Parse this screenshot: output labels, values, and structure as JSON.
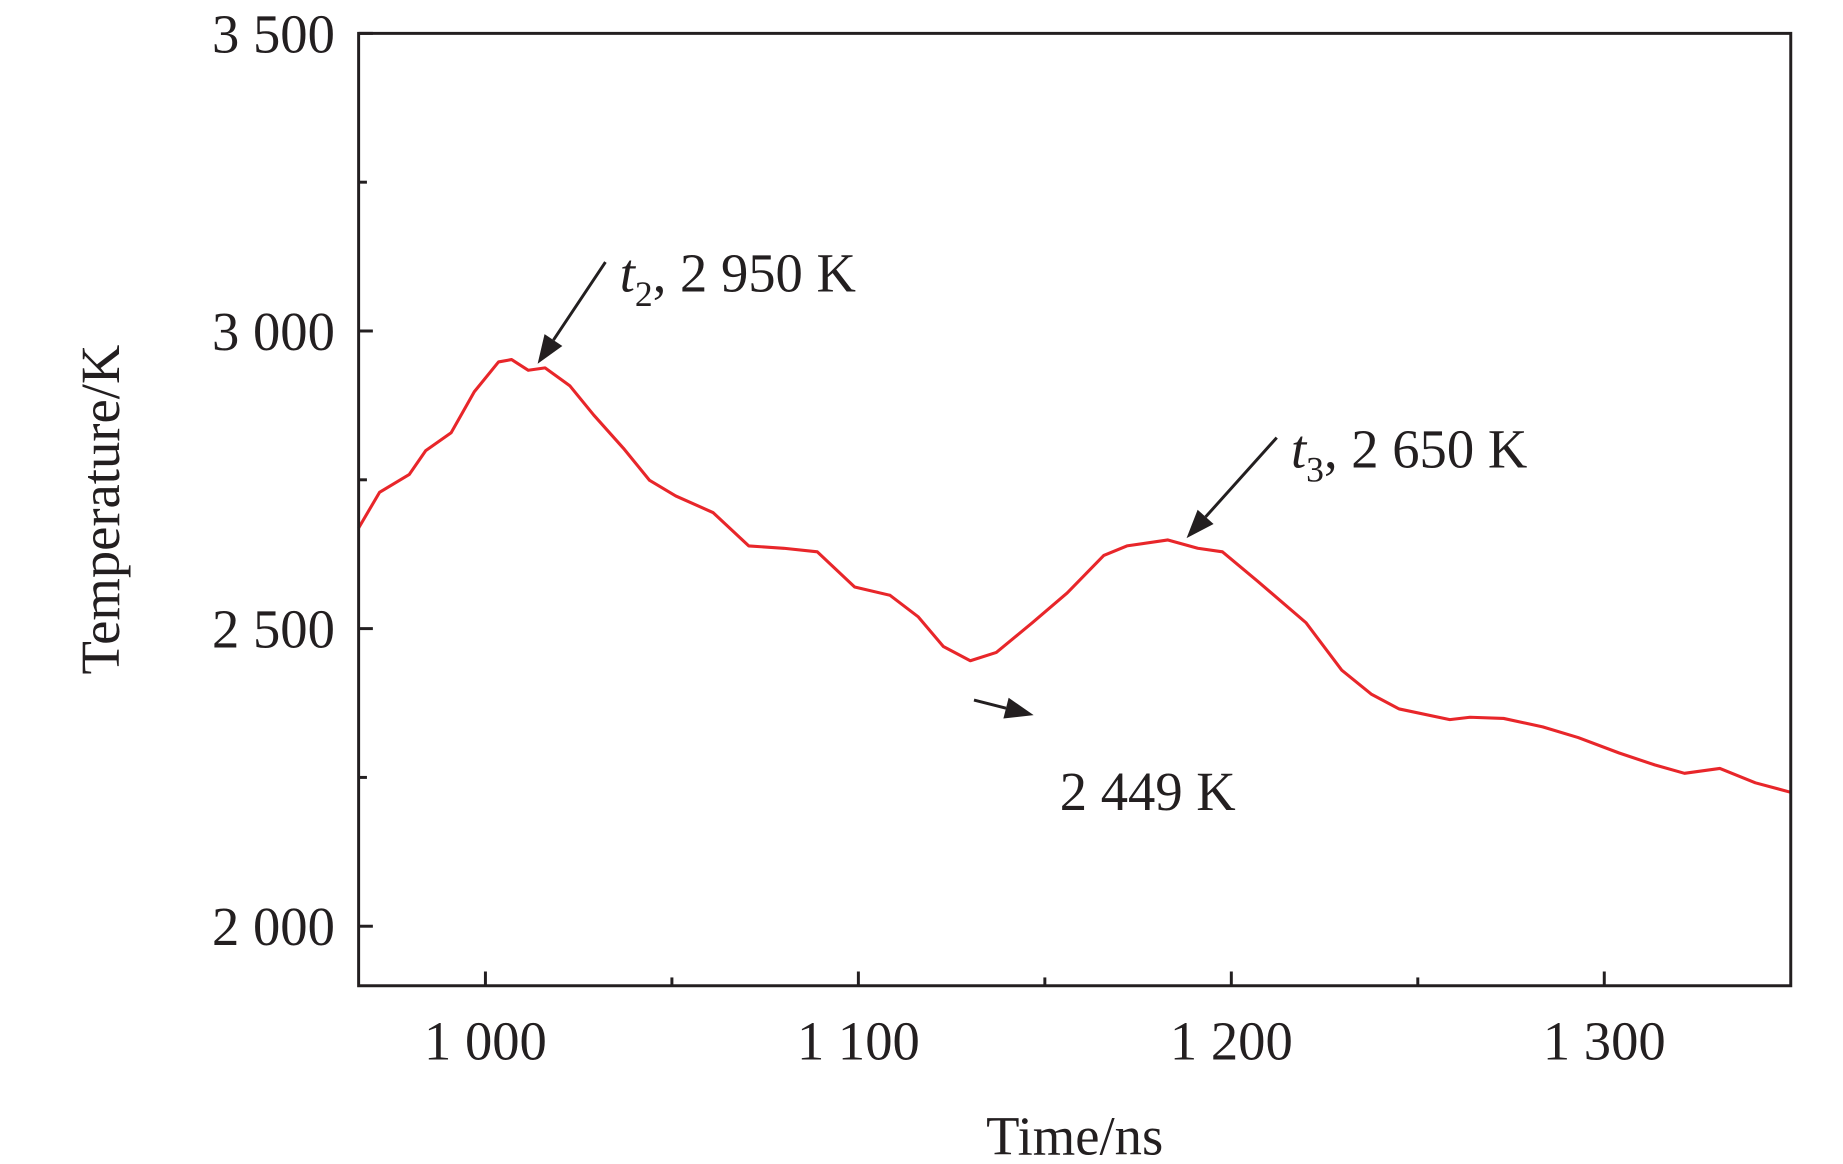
{
  "chart_data": {
    "type": "line",
    "title": "",
    "xlabel": "Time/ns",
    "ylabel": "Temperature/K",
    "xlim": [
      966,
      1350
    ],
    "ylim": [
      1900,
      3500
    ],
    "x_ticks": [
      1000,
      1100,
      1200,
      1300
    ],
    "x_tick_labels": [
      "1 000",
      "1 100",
      "1 200",
      "1 300"
    ],
    "x_minor_ticks": [
      1050,
      1150,
      1250
    ],
    "y_ticks": [
      2000,
      2500,
      3000,
      3500
    ],
    "y_tick_labels": [
      "2 000",
      "2 500",
      "3 000",
      "3 500"
    ],
    "y_minor_ticks": [
      2250,
      2750,
      3250
    ],
    "grid": false,
    "line_color": "#e8262a",
    "series": [
      {
        "name": "Temperature",
        "x": [
          966,
          971.6,
          979.6,
          984,
          990.8,
          997,
          1003.5,
          1007,
          1011.5,
          1016,
          1022.6,
          1029,
          1037,
          1044,
          1051,
          1061,
          1070.6,
          1080,
          1089,
          1099,
          1108.5,
          1116,
          1122.8,
          1130,
          1137,
          1146.7,
          1156,
          1165.8,
          1172,
          1183,
          1191,
          1197.6,
          1207,
          1220,
          1229.6,
          1237.5,
          1245,
          1258.6,
          1264,
          1273,
          1283.5,
          1293,
          1304,
          1313.5,
          1321.5,
          1331,
          1340.5,
          1350
        ],
        "y": [
          2669,
          2729,
          2759,
          2799,
          2829,
          2898,
          2948,
          2952,
          2934,
          2938,
          2908,
          2859,
          2803,
          2749,
          2723,
          2695,
          2639,
          2635,
          2629,
          2570,
          2556,
          2520,
          2470,
          2446,
          2460,
          2510,
          2560,
          2623,
          2639,
          2649,
          2635,
          2629,
          2580,
          2510,
          2430,
          2390,
          2365,
          2347,
          2351,
          2349,
          2335,
          2317,
          2291,
          2271,
          2257,
          2265,
          2241,
          2225
        ]
      }
    ],
    "annotations": [
      {
        "italic": "t",
        "sub": "2",
        "text": ", 2 950 K",
        "point": [
          1014,
          2945
        ],
        "text_at": [
          1036,
          3066
        ]
      },
      {
        "italic": "t",
        "sub": "3",
        "text": ", 2 650 K",
        "point": [
          1188,
          2652
        ],
        "text_at": [
          1216,
          2771
        ]
      },
      {
        "italic": "",
        "sub": "",
        "text": "2 449 K",
        "point": [
          1137,
          2432
        ],
        "text_at": [
          1154,
          2195
        ]
      }
    ]
  }
}
